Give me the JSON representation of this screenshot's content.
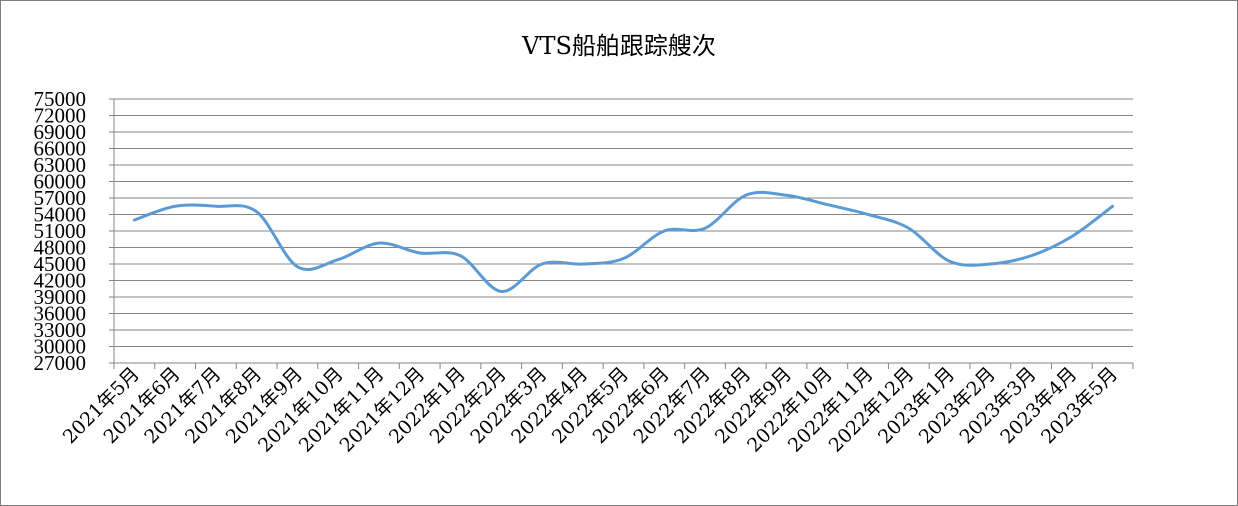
{
  "chart_data": {
    "type": "line",
    "title": "VTS船舶跟踪艘次",
    "xlabel": "",
    "ylabel": "",
    "ylim": [
      27000,
      75000
    ],
    "ytick_step": 3000,
    "grid": true,
    "legend": "none",
    "smooth": true,
    "line_color": "#5B9BD5",
    "categories": [
      "2021年5月",
      "2021年6月",
      "2021年7月",
      "2021年8月",
      "2021年9月",
      "2021年10月",
      "2021年11月",
      "2021年12月",
      "2022年1月",
      "2022年2月",
      "2022年3月",
      "2022年4月",
      "2022年5月",
      "2022年6月",
      "2022年7月",
      "2022年8月",
      "2022年9月",
      "2022年10月",
      "2022年11月",
      "2022年12月",
      "2023年1月",
      "2023年2月",
      "2023年3月",
      "2023年4月",
      "2023年5月"
    ],
    "series": [
      {
        "values": [
          53000,
          55500,
          55500,
          54500,
          44500,
          45800,
          48800,
          47000,
          46500,
          40000,
          45000,
          45000,
          46000,
          51000,
          51500,
          57500,
          57500,
          55800,
          54000,
          51500,
          45500,
          45000,
          46500,
          50000,
          55500
        ]
      }
    ]
  }
}
